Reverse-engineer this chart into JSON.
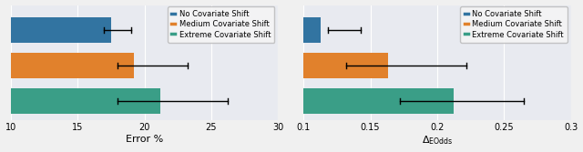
{
  "left": {
    "xlabel": "Error %",
    "xlim": [
      10,
      30
    ],
    "xticks": [
      10,
      15,
      20,
      25,
      30
    ],
    "bars": [
      17.5,
      19.2,
      21.2
    ],
    "xerr_lo": [
      17.0,
      18.0,
      18.0
    ],
    "xerr_hi": [
      19.0,
      23.2,
      26.2
    ]
  },
  "right": {
    "xlabel": "$\\Delta_{\\mathrm{EOdds}}$",
    "xlim": [
      0.1,
      0.3
    ],
    "xticks": [
      0.1,
      0.15,
      0.2,
      0.25,
      0.3
    ],
    "bars": [
      0.113,
      0.163,
      0.212
    ],
    "xerr_lo": [
      0.118,
      0.132,
      0.172
    ],
    "xerr_hi": [
      0.143,
      0.222,
      0.265
    ]
  },
  "colors": [
    "#3274a1",
    "#e1812c",
    "#3a9e87"
  ],
  "legend_labels": [
    "No Covariate Shift",
    "Medium Covariate Shift",
    "Extreme Covariate Shift"
  ],
  "bg_color": "#e8eaf0",
  "fig_color": "#f0f0f0",
  "bar_height": 0.72
}
